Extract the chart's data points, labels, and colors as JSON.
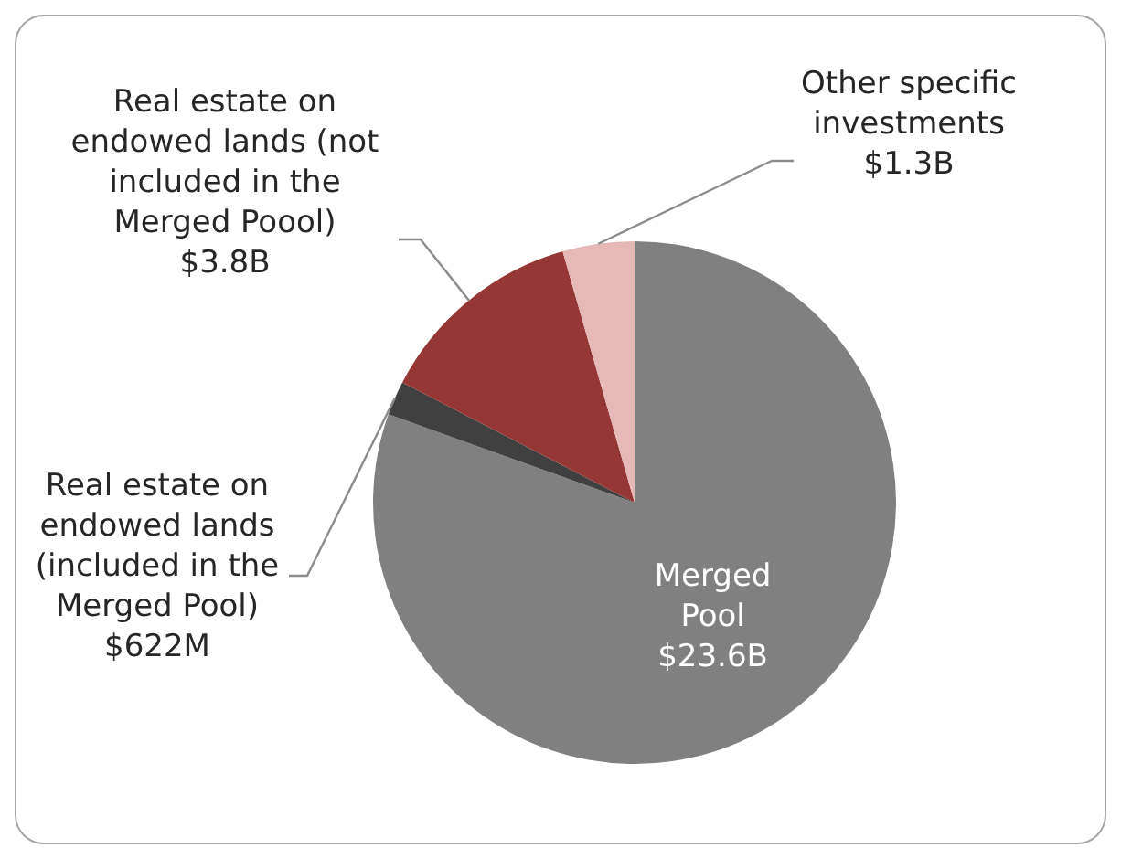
{
  "chart_data": {
    "type": "pie",
    "categories": [
      "Merged Pool",
      "Real estate on endowed lands (included in the Merged Pool)",
      "Real estate on endowed lands (not included in the Merged Poool)",
      "Other specific investments"
    ],
    "values": [
      23600000000,
      622000000,
      3800000000,
      1300000000
    ],
    "value_labels": [
      "$23.6B",
      "$622M",
      "$3.8B",
      "$1.3B"
    ],
    "colors": [
      "#808080",
      "#404040",
      "#953735",
      "#e6b9b8"
    ],
    "legend": false
  }
}
